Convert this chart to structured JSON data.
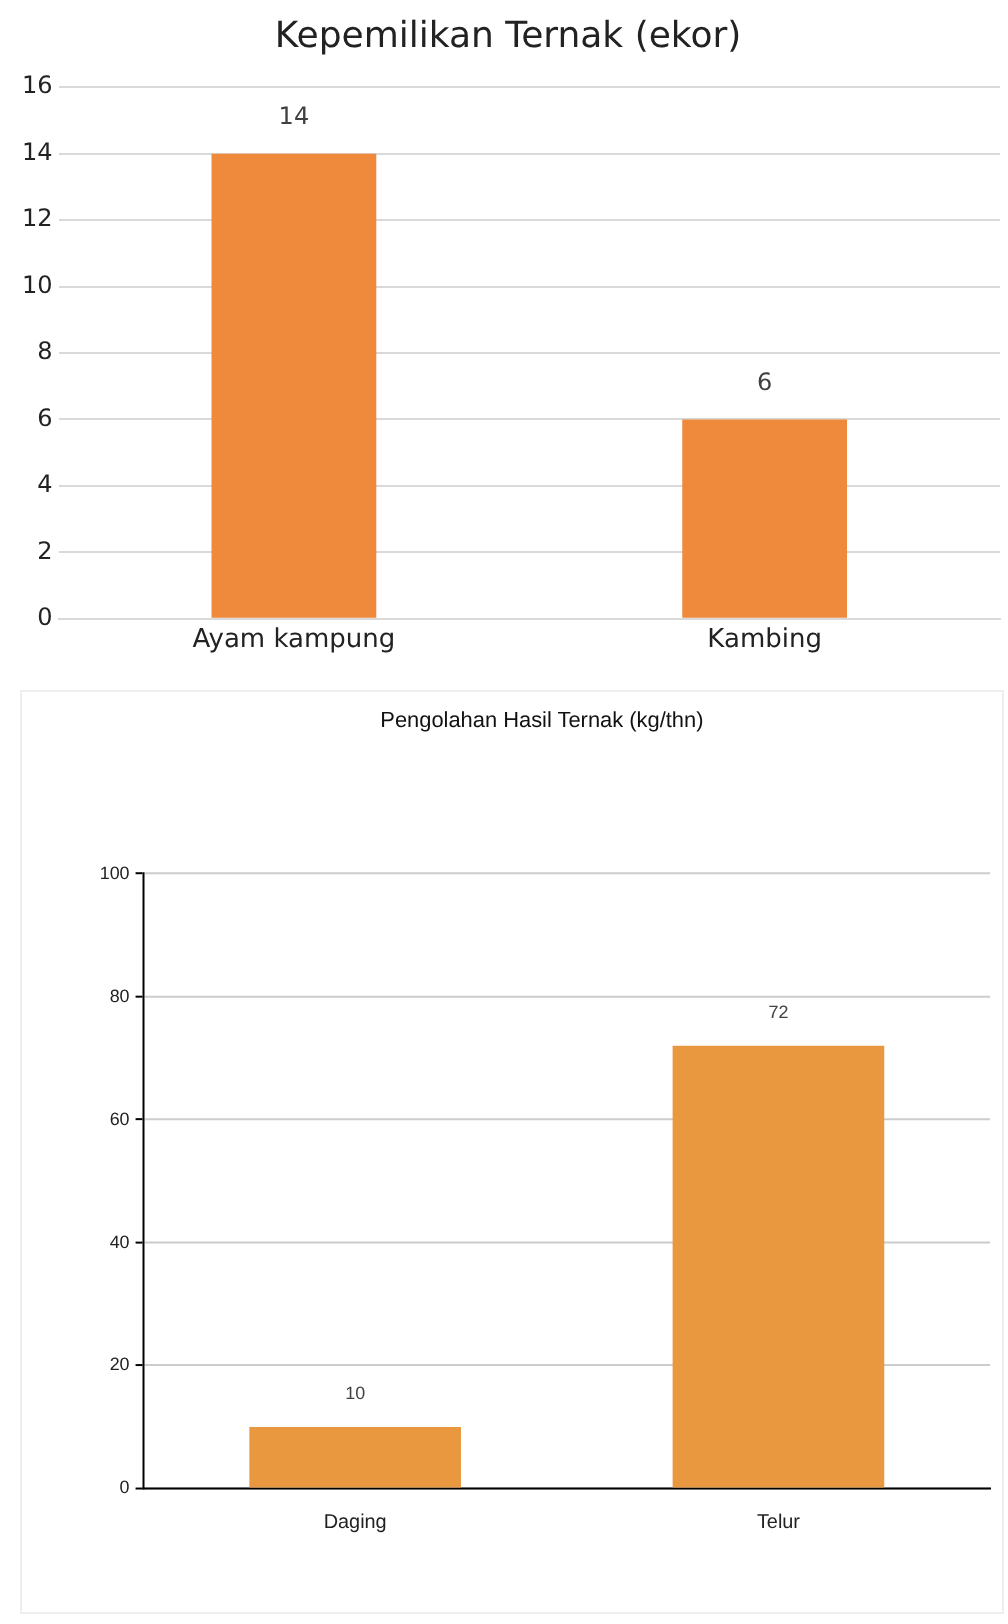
{
  "chart_data": [
    {
      "type": "bar",
      "title": "Kepemilikan Ternak (ekor)",
      "categories": [
        "Ayam kampung",
        "Kambing"
      ],
      "values": [
        14,
        6
      ],
      "color": "#ef893b",
      "ylim": [
        0,
        16
      ],
      "yticks": [
        0,
        2,
        4,
        6,
        8,
        10,
        12,
        14,
        16
      ],
      "grid": "y",
      "data_labels": true
    },
    {
      "type": "bar",
      "title": "Pengolahan Hasil Ternak (kg/thn)",
      "categories": [
        "Daging",
        "Telur"
      ],
      "values": [
        10,
        72
      ],
      "color": "#ea983f",
      "ylim": [
        0,
        100
      ],
      "yticks": [
        0,
        20,
        40,
        60,
        80,
        100
      ],
      "grid": "y",
      "data_labels": true
    }
  ]
}
